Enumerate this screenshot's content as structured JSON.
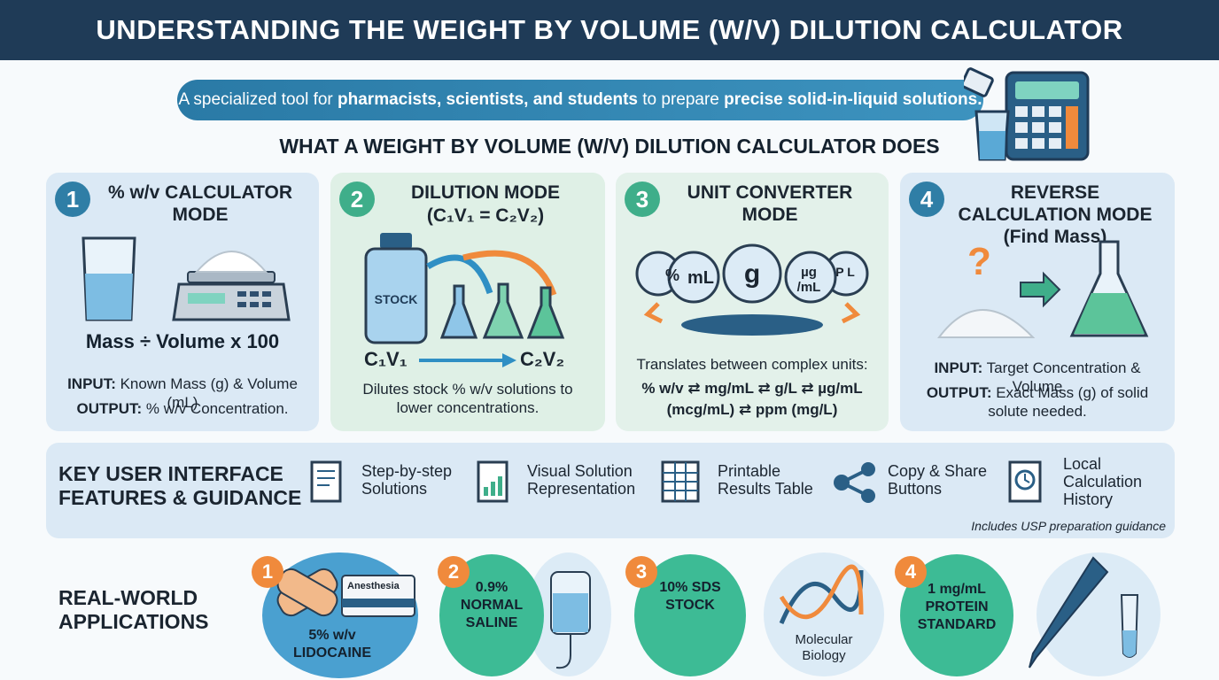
{
  "header": {
    "title": "UNDERSTANDING THE WEIGHT BY VOLUME (W/V) DILUTION CALCULATOR"
  },
  "banner": {
    "segments": [
      "A specialized tool for ",
      "pharmacists, scientists, and students",
      " to prepare ",
      "precise solid-in-liquid solutions."
    ]
  },
  "section_heading": "WHAT A WEIGHT BY VOLUME (W/V) DILUTION CALCULATOR DOES",
  "modes": [
    {
      "number": "1",
      "title": "% w/v CALCULATOR MODE",
      "formula": "Mass ÷ Volume x 100",
      "input_label": "INPUT:",
      "input": "Known Mass (g) & Volume (mL)",
      "output_label": "OUTPUT:",
      "output": "% w/v Concentration."
    },
    {
      "number": "2",
      "title": "DILUTION MODE",
      "subtitle": "(C₁V₁ = C₂V₂)",
      "bottle_label": "STOCK",
      "from": "C₁V₁",
      "to": "C₂V₂",
      "description": "Dilutes stock % w/v solutions to lower concentrations."
    },
    {
      "number": "3",
      "title": "UNIT CONVERTER MODE",
      "dials": [
        "%",
        "mL",
        "g",
        "µg /mL",
        "P L"
      ],
      "description": "Translates between complex units:",
      "units": "% w/v ⇄ mg/mL ⇄ g/L ⇄ µg/mL (mcg/mL) ⇄ ppm (mg/L)"
    },
    {
      "number": "4",
      "title": "REVERSE CALCULATION MODE (Find Mass)",
      "question": "?",
      "input_label": "INPUT:",
      "input": "Target Concentration & Volume",
      "output_label": "OUTPUT:",
      "output": "Exact Mass (g) of solid solute needed."
    }
  ],
  "features": {
    "title": "KEY USER INTERFACE FEATURES & GUIDANCE",
    "items": [
      "Step-by-step Solutions",
      "Visual Solution Representation",
      "Printable Results Table",
      "Copy & Share Buttons",
      "Local Calculation History"
    ],
    "note": "Includes USP preparation guidance"
  },
  "applications": {
    "title": "REAL-WORLD APPLICATIONS",
    "items": [
      {
        "number": "1",
        "label": "5% w/v LIDOCAINE",
        "tag": "Anesthesia"
      },
      {
        "number": "2",
        "label": "0.9% NORMAL SALINE"
      },
      {
        "number": "3",
        "label": "10% SDS STOCK",
        "caption": "Molecular Biology"
      },
      {
        "number": "4",
        "label": "1 mg/mL PROTEIN STANDARD"
      }
    ]
  }
}
